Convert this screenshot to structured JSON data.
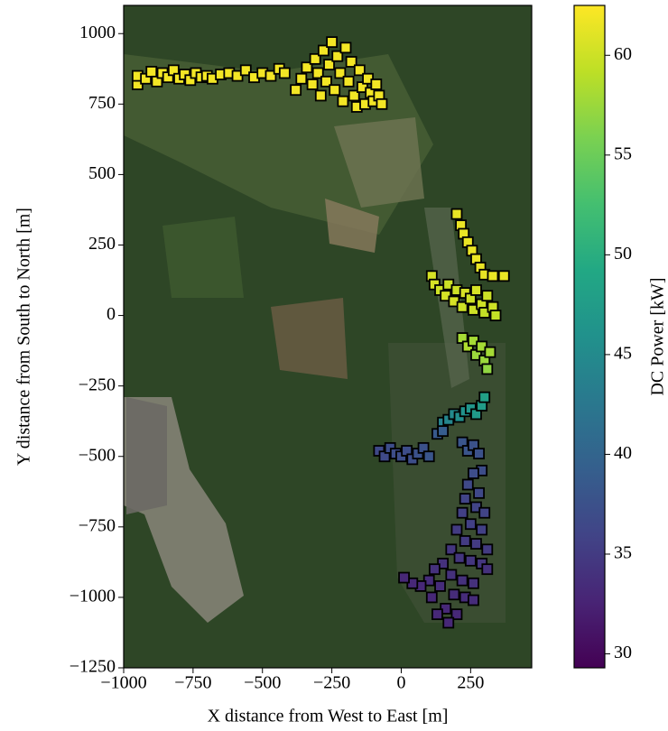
{
  "chart_data": {
    "type": "scatter",
    "xlabel": "X distance from West to East [m]",
    "ylabel": "Y distance from South to North [m]",
    "colorbar_label": "DC Power [kW]",
    "colormap": "viridis",
    "marker_edge_color": "#000000",
    "xlim": [
      -1000,
      470
    ],
    "ylim": [
      -1250,
      1100
    ],
    "clim": [
      29.3,
      62.5
    ],
    "xticks": [
      {
        "value": -1000,
        "label": "−1000"
      },
      {
        "value": -750,
        "label": "−750"
      },
      {
        "value": -500,
        "label": "−500"
      },
      {
        "value": -250,
        "label": "−250"
      },
      0,
      250
    ],
    "yticks": [
      {
        "value": -1250,
        "label": "−1250"
      },
      {
        "value": -1000,
        "label": "−1000"
      },
      {
        "value": -750,
        "label": "−750"
      },
      {
        "value": -500,
        "label": "−500"
      },
      {
        "value": -250,
        "label": "−250"
      },
      0,
      250,
      500,
      750,
      1000
    ],
    "cticks": [
      30,
      35,
      40,
      45,
      50,
      55,
      60
    ],
    "x": [
      -950,
      -950,
      -920,
      -900,
      -880,
      -860,
      -840,
      -820,
      -800,
      -780,
      -760,
      -740,
      -720,
      -700,
      -680,
      -650,
      -620,
      -590,
      -560,
      -530,
      -500,
      -470,
      -440,
      -420,
      -380,
      -360,
      -340,
      -320,
      -310,
      -300,
      -290,
      -280,
      -270,
      -260,
      -250,
      -240,
      -230,
      -220,
      -210,
      -200,
      -190,
      -180,
      -170,
      -160,
      -150,
      -140,
      -130,
      -120,
      -110,
      -100,
      -90,
      -80,
      -70,
      200,
      215,
      225,
      240,
      255,
      270,
      285,
      300,
      330,
      370,
      110,
      120,
      140,
      160,
      170,
      190,
      200,
      220,
      230,
      250,
      260,
      270,
      290,
      300,
      310,
      330,
      340,
      220,
      240,
      260,
      270,
      290,
      300,
      310,
      320,
      150,
      170,
      190,
      210,
      230,
      250,
      270,
      290,
      300,
      -80,
      -60,
      -40,
      -20,
      0,
      20,
      40,
      60,
      80,
      100,
      130,
      150,
      220,
      240,
      260,
      280,
      290,
      260,
      240,
      280,
      230,
      270,
      300,
      220,
      250,
      290,
      200,
      230,
      270,
      310,
      180,
      210,
      250,
      290,
      150,
      120,
      180,
      220,
      260,
      100,
      140,
      190,
      230,
      70,
      40,
      10,
      110,
      160,
      200,
      130,
      170,
      310,
      260
    ],
    "y": [
      820,
      850,
      840,
      865,
      830,
      860,
      845,
      870,
      840,
      855,
      835,
      860,
      845,
      850,
      840,
      855,
      860,
      850,
      870,
      845,
      860,
      850,
      875,
      860,
      800,
      840,
      880,
      820,
      910,
      860,
      780,
      940,
      830,
      890,
      970,
      800,
      920,
      860,
      760,
      950,
      830,
      900,
      780,
      740,
      870,
      810,
      750,
      840,
      790,
      760,
      820,
      780,
      750,
      360,
      320,
      290,
      260,
      230,
      200,
      170,
      145,
      140,
      140,
      140,
      110,
      90,
      70,
      110,
      50,
      90,
      30,
      80,
      60,
      20,
      90,
      40,
      10,
      70,
      30,
      0,
      -80,
      -110,
      -90,
      -140,
      -110,
      -160,
      -190,
      -130,
      -380,
      -370,
      -350,
      -360,
      -340,
      -330,
      -350,
      -320,
      -290,
      -480,
      -500,
      -470,
      -490,
      -500,
      -480,
      -510,
      -490,
      -470,
      -500,
      -420,
      -410,
      -450,
      -480,
      -460,
      -490,
      -550,
      -560,
      -600,
      -630,
      -650,
      -680,
      -700,
      -700,
      -740,
      -760,
      -760,
      -800,
      -810,
      -830,
      -830,
      -860,
      -870,
      -880,
      -880,
      -900,
      -920,
      -940,
      -950,
      -940,
      -960,
      -990,
      -1000,
      -960,
      -950,
      -930,
      -1000,
      -1040,
      -1060,
      -1060,
      -1090,
      -900,
      -1010
    ],
    "c": [
      62,
      62,
      62,
      62,
      62,
      62,
      62,
      62,
      62,
      62,
      62,
      62,
      62,
      62,
      62,
      62,
      62,
      62,
      62,
      62,
      62,
      62,
      62,
      62,
      62,
      62,
      62,
      62,
      62,
      62,
      62,
      62,
      62,
      62,
      62,
      62,
      62,
      62,
      62,
      62,
      62,
      62,
      62,
      62,
      62,
      62,
      62,
      62,
      62,
      62,
      62,
      62,
      62,
      61.5,
      61.5,
      61.5,
      61.5,
      61.5,
      61.5,
      61.5,
      61.5,
      61.5,
      61.5,
      60.5,
      60.5,
      60,
      60.5,
      60,
      60.5,
      60,
      60,
      60.5,
      60,
      60,
      60.5,
      60,
      59.5,
      60,
      60,
      59.5,
      58,
      58.5,
      58,
      57.5,
      58,
      57.5,
      57,
      58,
      44,
      44.5,
      45,
      45.5,
      46,
      46.5,
      47,
      47.5,
      48,
      36.5,
      36.5,
      37,
      37,
      37,
      37,
      37,
      37.5,
      37.5,
      38,
      38.5,
      39,
      38,
      38,
      37.5,
      37.5,
      37,
      37,
      36.5,
      36.5,
      36,
      36,
      36,
      35.5,
      35.5,
      35.5,
      35,
      35,
      35,
      35,
      34.5,
      34.5,
      34.5,
      34.5,
      34,
      34,
      34,
      34,
      34,
      33.5,
      33.5,
      33.5,
      33.5,
      33,
      33,
      33,
      33,
      33,
      33,
      33,
      33,
      34,
      33.5
    ]
  }
}
